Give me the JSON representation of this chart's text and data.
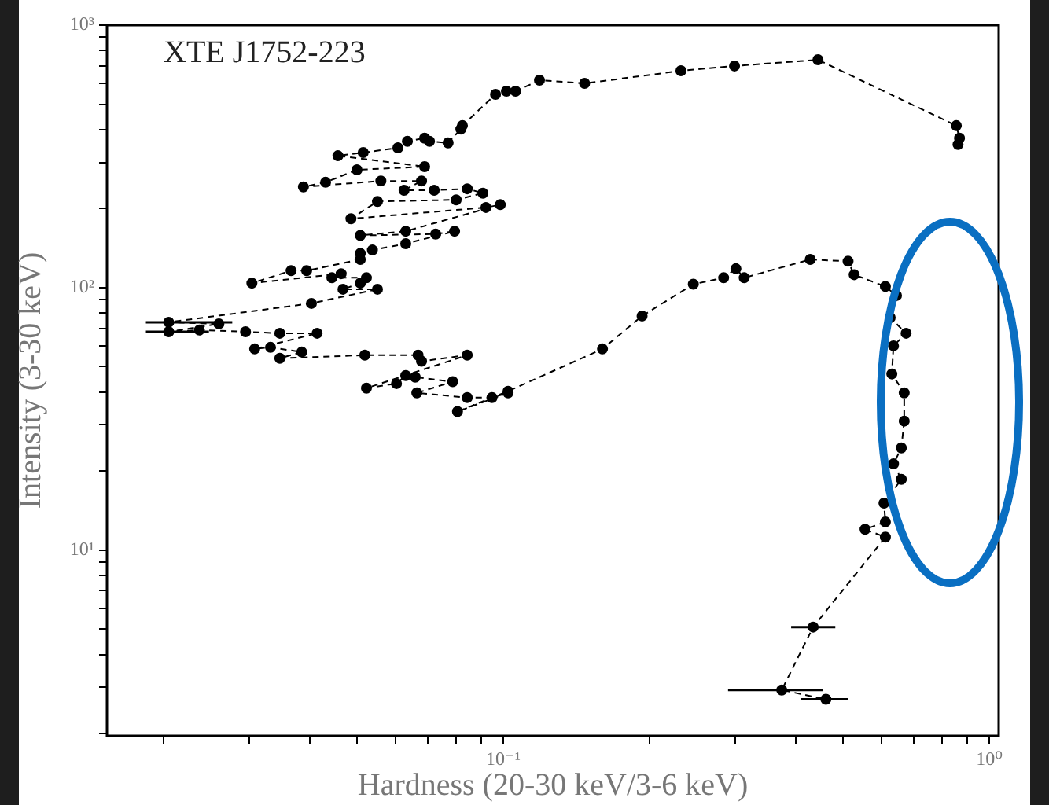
{
  "chart_data": {
    "type": "line",
    "title": "XTE J1752-223",
    "xlabel": "Hardness (20-30 keV/3-6 keV)",
    "ylabel": "Intensity (3-30 keV)",
    "log": "xy",
    "grid": false,
    "legend": false,
    "marker": "circle",
    "line_style": "dashed",
    "xlim": [
      0.0153,
      1.045
    ],
    "ylim": [
      1.96,
      1000
    ],
    "xticks": [
      {
        "value": 0.02,
        "label": null
      },
      {
        "value": 0.03,
        "label": null
      },
      {
        "value": 0.04,
        "label": null
      },
      {
        "value": 0.05,
        "label": null
      },
      {
        "value": 0.06,
        "label": null
      },
      {
        "value": 0.07,
        "label": null
      },
      {
        "value": 0.08,
        "label": null
      },
      {
        "value": 0.09,
        "label": null
      },
      {
        "value": 0.1,
        "label": "10⁻¹"
      },
      {
        "value": 0.2,
        "label": null
      },
      {
        "value": 0.3,
        "label": null
      },
      {
        "value": 0.4,
        "label": null
      },
      {
        "value": 0.5,
        "label": null
      },
      {
        "value": 0.6,
        "label": null
      },
      {
        "value": 0.7,
        "label": null
      },
      {
        "value": 0.8,
        "label": null
      },
      {
        "value": 0.9,
        "label": null
      },
      {
        "value": 1,
        "label": "10⁰"
      }
    ],
    "yticks": [
      {
        "value": 2,
        "label": null
      },
      {
        "value": 3,
        "label": null
      },
      {
        "value": 4,
        "label": null
      },
      {
        "value": 5,
        "label": null
      },
      {
        "value": 6,
        "label": null
      },
      {
        "value": 7,
        "label": null
      },
      {
        "value": 8,
        "label": null
      },
      {
        "value": 9,
        "label": null
      },
      {
        "value": 10,
        "label": "10¹"
      },
      {
        "value": 20,
        "label": null
      },
      {
        "value": 30,
        "label": null
      },
      {
        "value": 40,
        "label": null
      },
      {
        "value": 50,
        "label": null
      },
      {
        "value": 60,
        "label": null
      },
      {
        "value": 70,
        "label": null
      },
      {
        "value": 80,
        "label": null
      },
      {
        "value": 90,
        "label": null
      },
      {
        "value": 100,
        "label": "10²"
      },
      {
        "value": 200,
        "label": null
      },
      {
        "value": 300,
        "label": null
      },
      {
        "value": 400,
        "label": null
      },
      {
        "value": 500,
        "label": null
      },
      {
        "value": 600,
        "label": null
      },
      {
        "value": 700,
        "label": null
      },
      {
        "value": 800,
        "label": null
      },
      {
        "value": 900,
        "label": null
      },
      {
        "value": 1000,
        "label": "10³"
      }
    ],
    "series": [
      {
        "color": "#000000",
        "x": [
          0.862,
          0.868,
          0.855,
          0.444,
          0.299,
          0.232,
          0.147,
          0.1187,
          0.106,
          0.1015,
          0.0964,
          0.0824,
          0.0818,
          0.077,
          0.0705,
          0.0689,
          0.0635,
          0.0607,
          0.0515,
          0.0457,
          0.0689,
          0.05,
          0.0431,
          0.0388,
          0.056,
          0.0679,
          0.0625,
          0.0721,
          0.0843,
          0.0908,
          0.08,
          0.0551,
          0.0486,
          0.0921,
          0.0986,
          0.063,
          0.0508,
          0.0726,
          0.0794,
          0.063,
          0.0538,
          0.0508,
          0.0508,
          0.0394,
          0.0366,
          0.0304,
          0.0464,
          0.0444,
          0.0523,
          0.0508,
          0.0468,
          0.0551,
          0.0403,
          0.0205,
          0.026,
          0.0205,
          0.0237,
          0.0295,
          0.0347,
          0.0414,
          0.0308,
          0.0332,
          0.0385,
          0.0347,
          0.0519,
          0.0668,
          0.0679,
          0.0843,
          0.0523,
          0.0603,
          0.063,
          0.0659,
          0.0787,
          0.0664,
          0.0843,
          0.0948,
          0.1023,
          0.0805,
          0.1023,
          0.16,
          0.193,
          0.246,
          0.284,
          0.301,
          0.313,
          0.428,
          0.512,
          0.527,
          0.611,
          0.644,
          0.625,
          0.674,
          0.635,
          0.63,
          0.668,
          0.668,
          0.659,
          0.635,
          0.659,
          0.607,
          0.611,
          0.555,
          0.611,
          0.434,
          0.374,
          0.461
        ],
        "values": [
          351,
          371,
          414,
          738,
          699,
          670,
          600,
          617,
          560,
          560,
          545,
          414,
          402,
          356,
          361,
          371,
          361,
          341,
          327,
          318,
          289,
          281,
          252,
          242,
          255,
          255,
          235,
          235,
          238,
          229,
          216,
          213,
          183,
          202,
          207,
          164,
          158,
          160,
          164,
          147,
          139,
          135,
          128,
          116,
          116,
          104,
          113,
          109,
          109,
          104,
          98.6,
          98.6,
          87.1,
          73.8,
          72.8,
          67.9,
          68.9,
          67.9,
          67,
          67,
          58.4,
          59.2,
          56.8,
          53.8,
          55.3,
          55.3,
          52.4,
          55.3,
          41.4,
          43.1,
          46.2,
          45.6,
          43.8,
          39.7,
          38.1,
          38.1,
          39.7,
          33.7,
          40.3,
          58.4,
          78,
          103,
          109,
          118,
          109,
          128,
          126,
          112,
          101,
          93.3,
          76.9,
          67,
          60,
          46.9,
          39.7,
          31,
          24.5,
          21.3,
          18.6,
          15.1,
          12.8,
          12,
          11.2,
          5.09,
          2.93,
          2.7
        ],
        "xerrors": [
          null,
          null,
          null,
          null,
          null,
          null,
          null,
          null,
          null,
          null,
          null,
          null,
          null,
          null,
          null,
          null,
          null,
          null,
          null,
          null,
          null,
          null,
          null,
          null,
          null,
          null,
          null,
          null,
          null,
          null,
          null,
          null,
          null,
          null,
          null,
          null,
          null,
          null,
          null,
          null,
          null,
          null,
          null,
          null,
          null,
          null,
          null,
          null,
          null,
          null,
          null,
          null,
          null,
          [
            0.0184,
            0.0277
          ],
          null,
          [
            0.0184,
            0.0248
          ],
          null,
          null,
          null,
          null,
          null,
          null,
          null,
          null,
          null,
          null,
          null,
          null,
          null,
          null,
          null,
          null,
          null,
          null,
          null,
          null,
          null,
          null,
          null,
          null,
          null,
          null,
          null,
          null,
          null,
          null,
          null,
          null,
          null,
          null,
          null,
          null,
          null,
          null,
          null,
          null,
          null,
          null,
          null,
          null,
          null,
          null,
          null,
          [
            0.391,
            0.482
          ],
          [
            0.29,
            0.454
          ],
          [
            0.409,
            0.512
          ]
        ]
      }
    ]
  }
}
